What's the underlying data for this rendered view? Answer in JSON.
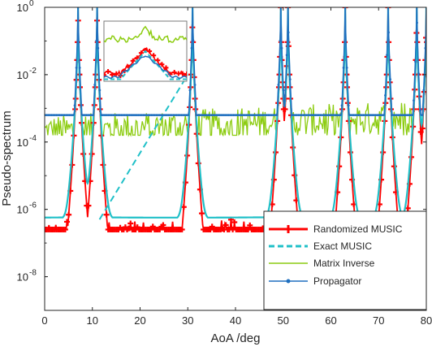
{
  "chart_data": {
    "type": "line",
    "title": "",
    "xlabel": "AoA /deg",
    "ylabel": "Pseudo-spectrum",
    "xlim": [
      0,
      80
    ],
    "ylim": [
      1e-09,
      1
    ],
    "yscale": "log",
    "grid": false,
    "legend_position": "bottom-right",
    "x_ticks": [
      "0",
      "10",
      "20",
      "30",
      "40",
      "50",
      "60",
      "70",
      "80"
    ],
    "x_tick_values": [
      0,
      10,
      20,
      30,
      40,
      50,
      60,
      70,
      80
    ],
    "y_ticks": [
      {
        "base": "10",
        "exp": "0",
        "value": 1
      },
      {
        "base": "10",
        "exp": "-2",
        "value": 0.01
      },
      {
        "base": "10",
        "exp": "-4",
        "value": 0.0001
      },
      {
        "base": "10",
        "exp": "-6",
        "value": 1e-06
      },
      {
        "base": "10",
        "exp": "-8",
        "value": 1e-08
      }
    ],
    "peaks": [
      7,
      11,
      31,
      49.5,
      51,
      63,
      72,
      78,
      80
    ],
    "series": [
      {
        "name": "Randomized MUSIC",
        "color": "#ff0000",
        "marker": "plus"
      },
      {
        "name": "Exact MUSIC",
        "color": "#20c0c8",
        "marker": "none"
      },
      {
        "name": "Matrix Inverse",
        "color": "#8ccc10",
        "marker": "none"
      },
      {
        "name": "Propagator",
        "color": "#1f6fbf",
        "marker": "dot"
      }
    ],
    "annotations": [
      "zoom-inset around 11 deg peak"
    ]
  }
}
